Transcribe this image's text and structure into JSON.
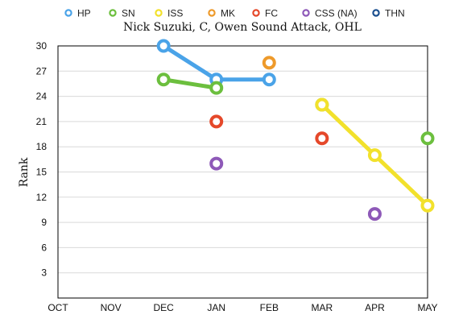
{
  "chart_data": {
    "type": "line",
    "title": "Nick Suzuki, C, Owen Sound Attack, OHL",
    "ylabel": "Rank",
    "xlabel": "",
    "categories": [
      "OCT",
      "NOV",
      "DEC",
      "JAN",
      "FEB",
      "MAR",
      "APR",
      "MAY"
    ],
    "ylim": [
      0,
      30
    ],
    "yticks": [
      3,
      6,
      9,
      12,
      15,
      18,
      21,
      24,
      27,
      30
    ],
    "grid": true,
    "legend_position": "top",
    "series": [
      {
        "name": "HP",
        "color": "#4aa3e8",
        "line": true,
        "points": [
          [
            "DEC",
            30
          ],
          [
            "JAN",
            26
          ],
          [
            "FEB",
            26
          ]
        ]
      },
      {
        "name": "SN",
        "color": "#6cbf3e",
        "line": true,
        "points": [
          [
            "DEC",
            26
          ],
          [
            "JAN",
            25
          ]
        ],
        "extra_points": [
          [
            "MAR",
            23
          ],
          [
            "MAY",
            19
          ]
        ]
      },
      {
        "name": "ISS",
        "color": "#f2e12c",
        "line": true,
        "points": [
          [
            "MAR",
            23
          ],
          [
            "APR",
            17
          ],
          [
            "MAY",
            11
          ]
        ]
      },
      {
        "name": "MK",
        "color": "#ee9a2b",
        "line": false,
        "points": [
          [
            "FEB",
            28
          ]
        ]
      },
      {
        "name": "FC",
        "color": "#e5482a",
        "line": false,
        "points": [
          [
            "JAN",
            21
          ],
          [
            "MAR",
            19
          ]
        ]
      },
      {
        "name": "CSS (NA)",
        "color": "#8e59b8",
        "line": false,
        "points": [
          [
            "JAN",
            16
          ],
          [
            "APR",
            10
          ]
        ]
      },
      {
        "name": "THN",
        "color": "#1b4f8f",
        "line": false,
        "points": []
      }
    ]
  }
}
